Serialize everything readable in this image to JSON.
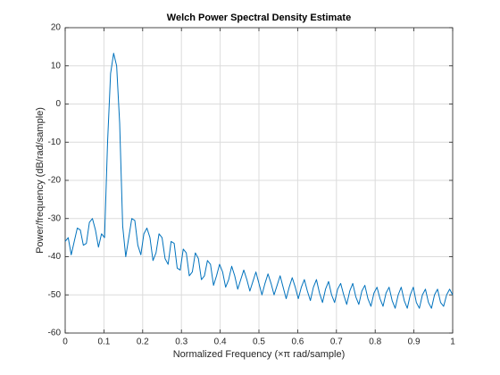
{
  "chart_data": {
    "type": "line",
    "title": "Welch Power Spectral Density Estimate",
    "xlabel": "Normalized Frequency  (×π rad/sample)",
    "ylabel": "Power/frequency (dB/rad/sample)",
    "color": "#0072bd",
    "grid": true,
    "xlim": [
      0,
      1
    ],
    "xticks": [
      0,
      0.1,
      0.2,
      0.3,
      0.4,
      0.5,
      0.6,
      0.7,
      0.8,
      0.9,
      1
    ],
    "ylim": [
      -60,
      20
    ],
    "yticks": [
      -60,
      -50,
      -40,
      -30,
      -20,
      -10,
      0,
      10,
      20
    ],
    "x": [
      0,
      0.0078,
      0.0156,
      0.0234,
      0.0313,
      0.0391,
      0.0469,
      0.0547,
      0.0625,
      0.0703,
      0.0781,
      0.0859,
      0.0938,
      0.1016,
      0.1094,
      0.1172,
      0.125,
      0.1328,
      0.1406,
      0.1484,
      0.1563,
      0.1641,
      0.1719,
      0.1797,
      0.1875,
      0.1953,
      0.2031,
      0.2109,
      0.2188,
      0.2266,
      0.2344,
      0.2422,
      0.25,
      0.2578,
      0.2656,
      0.2734,
      0.2813,
      0.2891,
      0.2969,
      0.3047,
      0.3125,
      0.3203,
      0.3281,
      0.3359,
      0.3438,
      0.3516,
      0.3594,
      0.3672,
      0.375,
      0.3828,
      0.3906,
      0.3984,
      0.4063,
      0.4141,
      0.4219,
      0.4297,
      0.4375,
      0.4453,
      0.4531,
      0.4609,
      0.4688,
      0.4766,
      0.4844,
      0.4922,
      0.5,
      0.5078,
      0.5156,
      0.5234,
      0.5313,
      0.5391,
      0.5469,
      0.5547,
      0.5625,
      0.5703,
      0.5781,
      0.5859,
      0.5938,
      0.6016,
      0.6094,
      0.6172,
      0.625,
      0.6328,
      0.6406,
      0.6484,
      0.6563,
      0.6641,
      0.6719,
      0.6797,
      0.6875,
      0.6953,
      0.7031,
      0.7109,
      0.7188,
      0.7266,
      0.7344,
      0.7422,
      0.75,
      0.7578,
      0.7656,
      0.7734,
      0.7813,
      0.7891,
      0.7969,
      0.8047,
      0.8125,
      0.8203,
      0.8281,
      0.8359,
      0.8438,
      0.8516,
      0.8594,
      0.8672,
      0.875,
      0.8828,
      0.8906,
      0.8984,
      0.9063,
      0.9141,
      0.9219,
      0.9297,
      0.9375,
      0.9453,
      0.9531,
      0.9609,
      0.9688,
      0.9766,
      0.9844,
      0.9922,
      1
    ],
    "values": [
      -36,
      -35,
      -39.5,
      -36,
      -32.5,
      -33,
      -37,
      -36.5,
      -31,
      -30,
      -33,
      -37.5,
      -34,
      -35,
      -10,
      8,
      13.3,
      10,
      -5,
      -32,
      -40,
      -35,
      -30,
      -30.5,
      -37,
      -39.5,
      -34,
      -32.5,
      -35,
      -41,
      -39,
      -34,
      -35,
      -40.5,
      -42,
      -36,
      -36.5,
      -43,
      -43.5,
      -38,
      -39,
      -45,
      -44,
      -39,
      -40.5,
      -46,
      -45,
      -41,
      -42,
      -47.5,
      -45,
      -42,
      -44,
      -48,
      -46,
      -42.5,
      -45,
      -48.5,
      -46,
      -43.5,
      -46,
      -49,
      -46.5,
      -44,
      -47,
      -50,
      -47,
      -44.5,
      -47,
      -50,
      -47.5,
      -45,
      -48,
      -51,
      -48,
      -45.5,
      -48,
      -51,
      -48,
      -46,
      -49,
      -51.5,
      -48,
      -46,
      -49.5,
      -52,
      -48.5,
      -46.5,
      -50,
      -52,
      -48.5,
      -47,
      -50,
      -52.5,
      -49,
      -47,
      -50.5,
      -52.5,
      -49,
      -47.5,
      -51,
      -53,
      -49.5,
      -48,
      -51,
      -53,
      -49.5,
      -48,
      -51.5,
      -53.5,
      -50,
      -48,
      -51.5,
      -53.5,
      -50,
      -48,
      -52,
      -53.5,
      -50,
      -48.5,
      -52,
      -53.5,
      -50,
      -48.5,
      -52,
      -53,
      -50,
      -48.5,
      -50
    ]
  }
}
